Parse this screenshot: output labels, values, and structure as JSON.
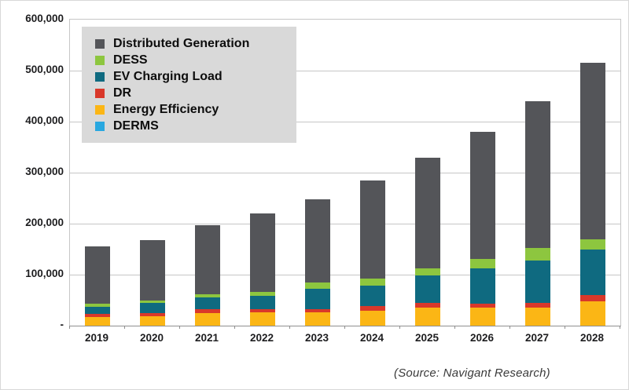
{
  "chart_data": {
    "type": "bar",
    "stacked": true,
    "title": "",
    "xlabel": "",
    "ylabel": "",
    "categories": [
      "2019",
      "2020",
      "2021",
      "2022",
      "2023",
      "2024",
      "2025",
      "2026",
      "2027",
      "2028"
    ],
    "series": [
      {
        "name": "DERMS",
        "color": "#29A8E0",
        "values": [
          0,
          0,
          0,
          0,
          0,
          0,
          0,
          0,
          0,
          0
        ]
      },
      {
        "name": "Energy Efficiency",
        "color": "#FBB615",
        "values": [
          17000,
          18000,
          24000,
          26000,
          26000,
          30000,
          35000,
          35000,
          36000,
          47000
        ]
      },
      {
        "name": "DR",
        "color": "#D9382A",
        "values": [
          6000,
          6000,
          8000,
          6000,
          7000,
          8000,
          9000,
          8000,
          9000,
          13000
        ]
      },
      {
        "name": "EV Charging Load",
        "color": "#0F6A80",
        "values": [
          14000,
          20000,
          23000,
          26000,
          39000,
          41000,
          54000,
          69000,
          83000,
          89000
        ]
      },
      {
        "name": "DESS",
        "color": "#8DC63F",
        "values": [
          6000,
          6000,
          6000,
          8000,
          12000,
          14000,
          15000,
          19000,
          25000,
          20000
        ]
      },
      {
        "name": "Distributed Generation",
        "color": "#545559",
        "values": [
          113000,
          117000,
          136000,
          154000,
          163000,
          192000,
          217000,
          249000,
          287000,
          346000
        ]
      }
    ],
    "stack_order": "bottom-to-top",
    "totals": [
      156000,
      167000,
      197000,
      220000,
      247000,
      285000,
      330000,
      380000,
      440000,
      515000
    ],
    "ylim": [
      0,
      600000
    ],
    "yticks": [
      {
        "value": 600000,
        "label": "600,000"
      },
      {
        "value": 500000,
        "label": "500,000"
      },
      {
        "value": 400000,
        "label": "400,000"
      },
      {
        "value": 300000,
        "label": "300,000"
      },
      {
        "value": 200000,
        "label": "200,000"
      },
      {
        "value": 100000,
        "label": "100,000"
      },
      {
        "value": 0,
        "label": "-"
      }
    ],
    "grid": "horizontal",
    "legend_position": "top-left"
  },
  "legend": {
    "items": [
      {
        "label": "Distributed Generation",
        "color": "#545559"
      },
      {
        "label": "DESS",
        "color": "#8DC63F"
      },
      {
        "label": "EV Charging Load",
        "color": "#0F6A80"
      },
      {
        "label": "DR",
        "color": "#D9382A"
      },
      {
        "label": "Energy Efficiency",
        "color": "#FBB615"
      },
      {
        "label": "DERMS",
        "color": "#29A8E0"
      }
    ]
  },
  "source": {
    "text": "(Source: Navigant Research)"
  },
  "colors": {
    "gridline": "#C6C6C6",
    "axis_line": "#8F8F8F",
    "tick_text": "#1D1D1F",
    "legend_background": "#D9D9D9",
    "source_text": "#3A3A3A",
    "background": "#FFFFFF"
  }
}
